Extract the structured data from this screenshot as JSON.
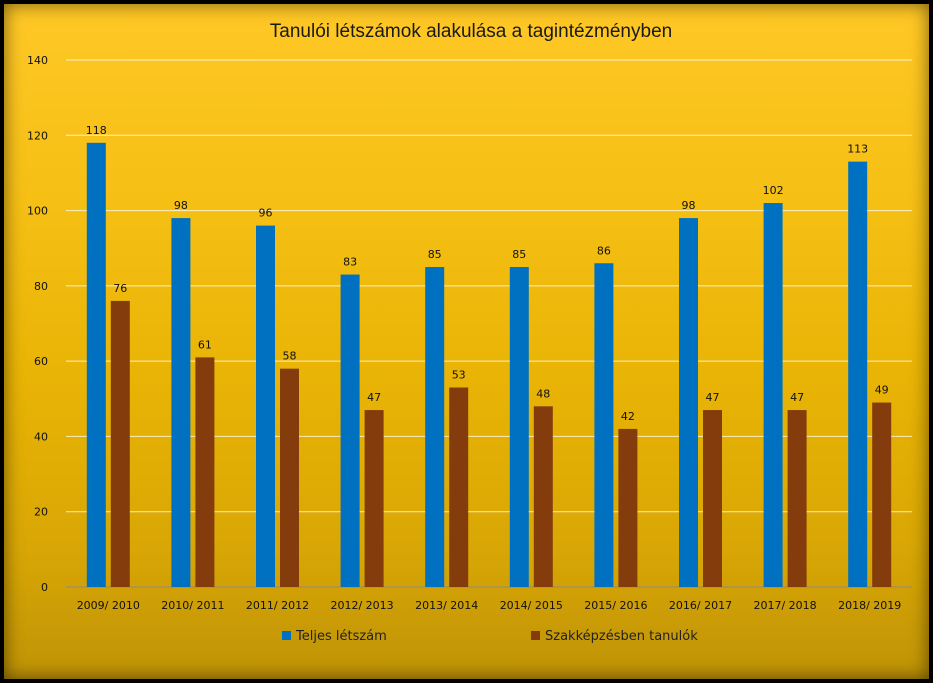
{
  "chart_data": {
    "type": "bar",
    "title": "Tanulói létszámok alakulása a tagintézményben",
    "categories": [
      "2009/ 2010",
      "2010/ 2011",
      "2011/ 2012",
      "2012/ 2013",
      "2013/ 2014",
      "2014/ 2015",
      "2015/ 2016",
      "2016/ 2017",
      "2017/ 2018",
      "2018/ 2019"
    ],
    "series": [
      {
        "name": "Teljes létszám",
        "color": "#0070c0",
        "values": [
          118,
          98,
          96,
          83,
          85,
          85,
          86,
          98,
          102,
          113
        ]
      },
      {
        "name": "Szakképzésben tanulók",
        "color": "#843c0c",
        "values": [
          76,
          61,
          58,
          47,
          53,
          48,
          42,
          47,
          47,
          49
        ]
      }
    ],
    "ylim": [
      0,
      140
    ],
    "yticks": [
      0,
      20,
      40,
      60,
      80,
      100,
      120,
      140
    ],
    "grid": true,
    "legend": "bottom",
    "data_labels": true
  }
}
